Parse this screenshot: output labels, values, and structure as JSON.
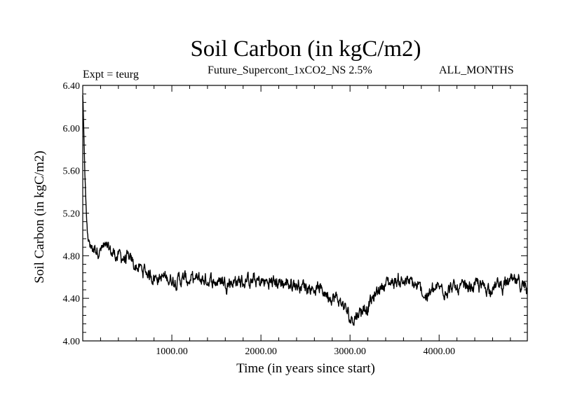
{
  "header": {
    "title": "Soil Carbon (in kgC/m2)",
    "subtitle": "Future_Supercont_1xCO2_NS 2.5%",
    "experiment": "Expt = teurg",
    "months": "ALL_MONTHS"
  },
  "chart_data": {
    "type": "line",
    "title": "Soil Carbon (in kgC/m2)",
    "xlabel": "Time (in years since start)",
    "ylabel": "Soil Carbon (in kgC/m2)",
    "xlim": [
      0,
      4990
    ],
    "ylim": [
      4.0,
      6.4
    ],
    "x_ticks": [
      1000,
      2000,
      3000,
      4000
    ],
    "x_tick_labels": [
      "1000.00",
      "2000.00",
      "3000.00",
      "4000.00"
    ],
    "y_ticks": [
      4.0,
      4.4,
      4.8,
      5.2,
      5.6,
      6.0,
      6.4
    ],
    "y_tick_labels": [
      "4.00",
      "4.40",
      "4.80",
      "5.20",
      "5.60",
      "6.00",
      "6.40"
    ],
    "grid": false,
    "series": [
      {
        "x": [
          0,
          5,
          10,
          20,
          30,
          40,
          50,
          60,
          80,
          100,
          130,
          160,
          200,
          250,
          300,
          350,
          400,
          450,
          500,
          550,
          600,
          700,
          800,
          900,
          1000,
          1100,
          1200,
          1300,
          1400,
          1500,
          1600,
          1700,
          1800,
          1900,
          2000,
          2100,
          2200,
          2300,
          2400,
          2500,
          2600,
          2700,
          2800,
          2900,
          2950,
          3000,
          3050,
          3100,
          3150,
          3200,
          3250,
          3300,
          3350,
          3400,
          3450,
          3500,
          3600,
          3700,
          3800,
          3850,
          3900,
          4000,
          4100,
          4200,
          4300,
          4400,
          4500,
          4600,
          4700,
          4800,
          4900,
          4990
        ],
        "y": [
          6.3,
          6.22,
          6.0,
          5.7,
          5.4,
          5.2,
          5.05,
          4.96,
          4.9,
          4.88,
          4.87,
          4.87,
          4.86,
          4.86,
          4.84,
          4.82,
          4.8,
          4.78,
          4.76,
          4.73,
          4.7,
          4.65,
          4.61,
          4.59,
          4.58,
          4.58,
          4.57,
          4.57,
          4.57,
          4.56,
          4.56,
          4.56,
          4.56,
          4.56,
          4.55,
          4.55,
          4.55,
          4.54,
          4.53,
          4.52,
          4.5,
          4.47,
          4.42,
          4.36,
          4.3,
          4.2,
          4.23,
          4.27,
          4.31,
          4.33,
          4.38,
          4.45,
          4.52,
          4.54,
          4.55,
          4.56,
          4.57,
          4.53,
          4.47,
          4.42,
          4.45,
          4.49,
          4.5,
          4.48,
          4.49,
          4.52,
          4.5,
          4.51,
          4.52,
          4.55,
          4.53,
          4.49
        ]
      }
    ]
  }
}
